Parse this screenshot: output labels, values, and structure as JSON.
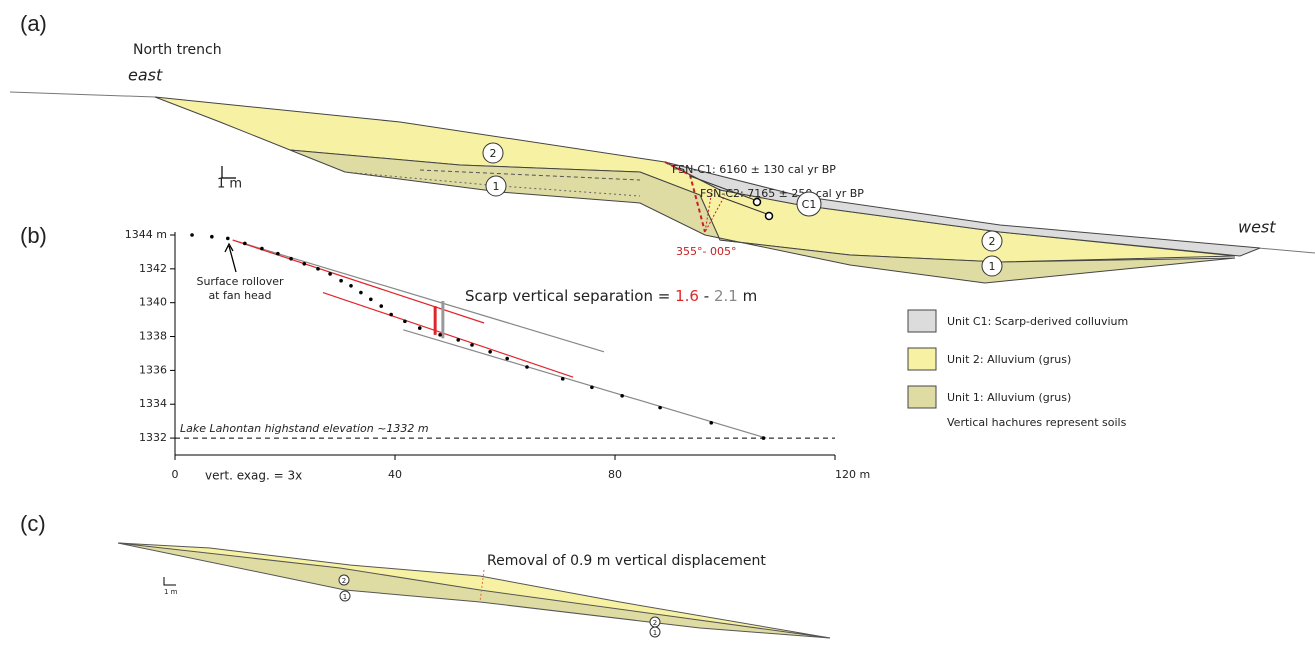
{
  "figure": {
    "panel_a": {
      "label": "(a)",
      "title": "North trench",
      "east": "east",
      "west": "west",
      "scale": "1 m",
      "units": [
        "2",
        "1",
        "C1",
        "2",
        "1"
      ],
      "samples": [
        "FSN-C1: 6160 ± 130 cal yr BP",
        "FSN-C2: 7165 ± 250 cal yr BP"
      ],
      "fault": "355°- 005°"
    },
    "legend": {
      "items": [
        {
          "label": "Unit C1: Scarp-derived colluvium",
          "color": "#dcdcdc"
        },
        {
          "label": "Unit 2: Alluvium (grus)",
          "color": "#f6f1a3"
        },
        {
          "label": "Unit 1: Alluvium (grus)",
          "color": "#dedba3"
        }
      ],
      "note": "Vertical hachures represent soils"
    },
    "panel_c": {
      "label": "(c)",
      "title": "Removal of 0.9 m vertical displacement",
      "scale": "1 m",
      "units": [
        "2",
        "1",
        "2",
        "1"
      ]
    }
  },
  "chart_data": {
    "type": "scatter",
    "label": "(b)",
    "color": "#000000",
    "x": [
      3.1,
      6.7,
      9.6,
      12.7,
      15.8,
      18.7,
      21.1,
      23.5,
      26.0,
      28.2,
      30.2,
      32.0,
      33.8,
      35.6,
      37.5,
      39.3,
      41.8,
      44.5,
      48.2,
      51.5,
      54.0,
      57.3,
      60.4,
      64.0,
      70.5,
      75.8,
      81.3,
      88.2,
      97.5,
      107
    ],
    "values": [
      1344.0,
      1343.9,
      1343.8,
      1343.5,
      1343.2,
      1342.9,
      1342.6,
      1342.3,
      1342.0,
      1341.7,
      1341.3,
      1341.0,
      1340.6,
      1340.2,
      1339.8,
      1339.3,
      1338.9,
      1338.5,
      1338.1,
      1337.8,
      1337.5,
      1337.1,
      1336.7,
      1336.2,
      1335.5,
      1335.0,
      1334.5,
      1333.8,
      1332.9,
      1332.0
    ],
    "lines": [
      {
        "x": [
          10.5,
          78
        ],
        "y": [
          1343.7,
          1337.1
        ],
        "color": "#888888"
      },
      {
        "x": [
          41.5,
          107.5
        ],
        "y": [
          1338.4,
          1332.0
        ],
        "color": "#888888"
      },
      {
        "x": [
          10.5,
          56.2
        ],
        "y": [
          1343.7,
          1338.8
        ],
        "color": "#e0262b"
      },
      {
        "x": [
          26.9,
          72.4
        ],
        "y": [
          1340.6,
          1335.6
        ],
        "color": "#e0262b"
      }
    ],
    "bars": [
      {
        "x": 47.3,
        "y": [
          1338.1,
          1339.8
        ],
        "color": "#e0262b"
      },
      {
        "x": 48.7,
        "y": [
          1337.9,
          1340.1
        ],
        "color": "#999999"
      }
    ],
    "lake": {
      "label": "Lake Lahontan highstand elevation ~1332 m",
      "y": 1332
    },
    "rollover": [
      "Surface rollover",
      "at fan head"
    ],
    "exaggeration": "vert. exag. = 3x",
    "separation": {
      "prefix": "Scarp vertical separation =",
      "min": 1.6,
      "dash": "-",
      "max": 2.1,
      "unit": "m",
      "min_color": "#e0262b",
      "max_color": "#888888"
    },
    "xlim": [
      0,
      120
    ],
    "ylim": [
      1331,
      1344
    ],
    "xticks": [
      0,
      40,
      80,
      {
        "value": 120,
        "label": "120 m"
      }
    ],
    "yticks": [
      1332,
      1334,
      1336,
      1338,
      1340,
      1342,
      {
        "value": 1344,
        "label": "1344 m"
      }
    ]
  }
}
